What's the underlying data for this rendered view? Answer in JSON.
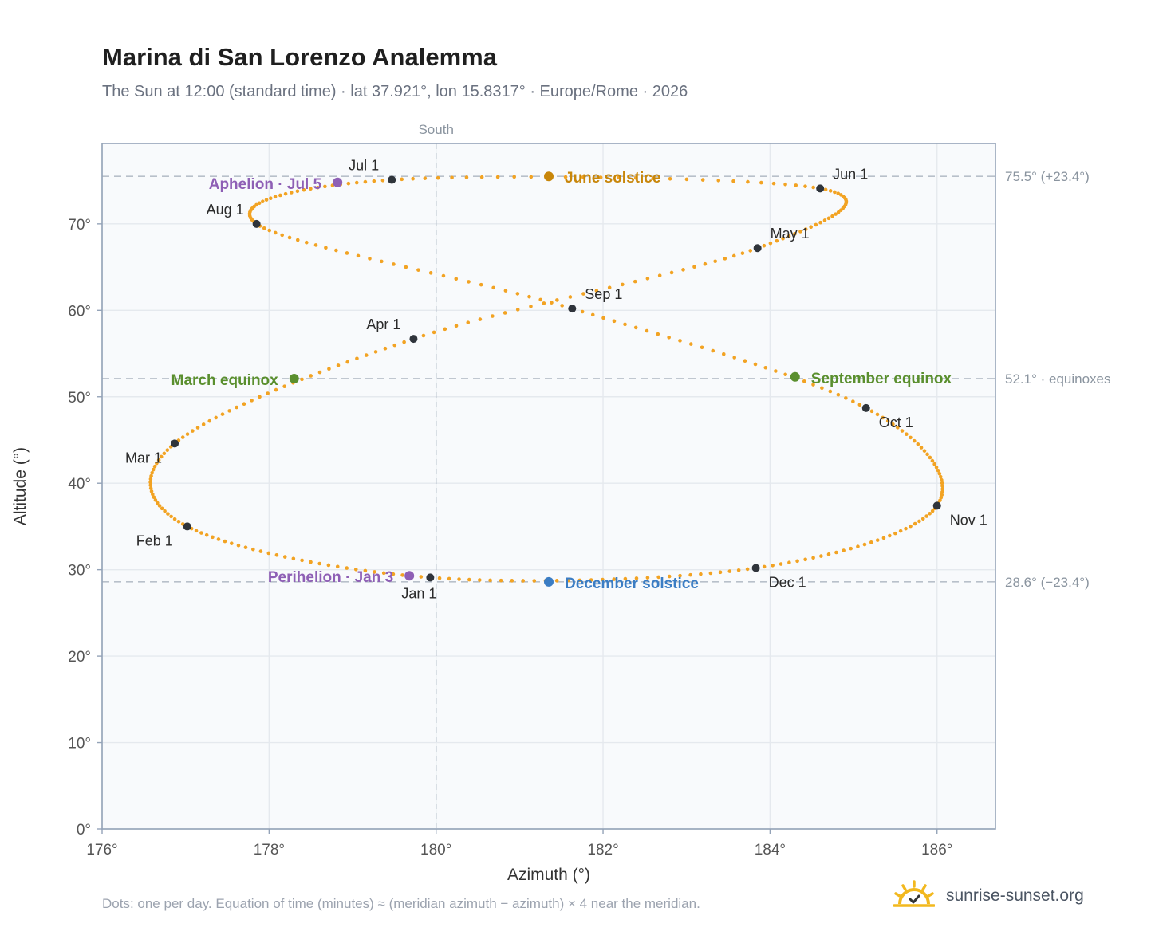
{
  "title": "Marina di San Lorenzo Analemma",
  "subtitle": "The Sun at 12:00 (standard time) · lat 37.921°, lon 15.8317° · Europe/Rome · 2026",
  "footnote": "Dots: one per day. Equation of time (minutes) ≈ (meridian azimuth − azimuth) × 4 near the meridian.",
  "brand": "sunrise-sunset.org",
  "chart_data": {
    "type": "scatter",
    "xlabel": "Azimuth (°)",
    "ylabel": "Altitude (°)",
    "xlim": [
      176,
      186.7
    ],
    "ylim": [
      0,
      79.3
    ],
    "x_ticks": [
      176,
      178,
      180,
      182,
      184,
      186
    ],
    "x_tick_labels": [
      "176°",
      "178°",
      "180°",
      "182°",
      "184°",
      "186°"
    ],
    "y_ticks": [
      0,
      10,
      20,
      30,
      40,
      50,
      60,
      70
    ],
    "y_tick_labels": [
      "0°",
      "10°",
      "20°",
      "30°",
      "40°",
      "50°",
      "60°",
      "70°"
    ],
    "grid": true,
    "meridian": {
      "x": 180,
      "label": "South"
    },
    "reference_lines": [
      {
        "y": 75.5,
        "label": "75.5° (+23.4°)"
      },
      {
        "y": 52.1,
        "label": "52.1° · equinoxes"
      },
      {
        "y": 28.6,
        "label": "28.6° (−23.4°)"
      }
    ],
    "month_markers": [
      {
        "label": "Jan 1",
        "x": 179.93,
        "y": 29.1
      },
      {
        "label": "Feb 1",
        "x": 177.02,
        "y": 35.0
      },
      {
        "label": "Mar 1",
        "x": 176.87,
        "y": 44.6
      },
      {
        "label": "Apr 1",
        "x": 179.73,
        "y": 56.7
      },
      {
        "label": "May 1",
        "x": 183.85,
        "y": 67.2
      },
      {
        "label": "Jun 1",
        "x": 184.6,
        "y": 74.1
      },
      {
        "label": "Jul 1",
        "x": 179.47,
        "y": 75.1
      },
      {
        "label": "Aug 1",
        "x": 177.85,
        "y": 70.0
      },
      {
        "label": "Sep 1",
        "x": 181.63,
        "y": 60.2
      },
      {
        "label": "Oct 1",
        "x": 185.15,
        "y": 48.7
      },
      {
        "label": "Nov 1",
        "x": 186.0,
        "y": 37.4
      },
      {
        "label": "Dec 1",
        "x": 183.83,
        "y": 30.2
      }
    ],
    "events": [
      {
        "label": "June solstice",
        "x": 181.35,
        "y": 75.5,
        "color": "#c8860a"
      },
      {
        "label": "December solstice",
        "x": 181.35,
        "y": 28.6,
        "color": "#3b7dc4"
      },
      {
        "label": "March equinox",
        "x": 178.3,
        "y": 52.1,
        "color": "#5a8f2e"
      },
      {
        "label": "September equinox",
        "x": 184.3,
        "y": 52.3,
        "color": "#5a8f2e"
      },
      {
        "label": "Aphelion · Jul 5",
        "x": 178.82,
        "y": 74.8,
        "color": "#8e5fb5"
      },
      {
        "label": "Perihelion · Jan 3",
        "x": 179.68,
        "y": 29.3,
        "color": "#8e5fb5"
      }
    ],
    "series": [
      {
        "color": "#f2a323"
      }
    ],
    "colors": {
      "analemma": "#f2a323",
      "month_marker": "#2f343b",
      "plot_background": "#f8fafc",
      "frame": "#94a3b8",
      "grid": "#e5e9ee",
      "reference_line": "#b8c0ca"
    }
  }
}
